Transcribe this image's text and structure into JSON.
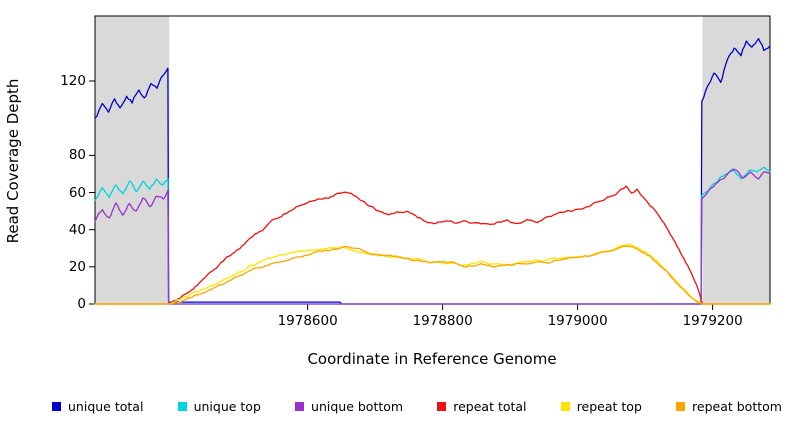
{
  "chart_data": {
    "type": "line",
    "title": "",
    "xlabel": "Coordinate in Reference Genome",
    "ylabel": "Read Coverage Depth",
    "xlim": [
      1978285,
      1979285
    ],
    "ylim": [
      0,
      155
    ],
    "xticks": [
      1978600,
      1978800,
      1979000,
      1979200
    ],
    "yticks": [
      0,
      20,
      40,
      60,
      80,
      120
    ],
    "grid": false,
    "legend_position": "bottom",
    "noise_seed": 7,
    "shaded_regions": [
      {
        "name": "left-flank",
        "x0": 1978285,
        "x1": 1978395,
        "color": "#d9d9d9"
      },
      {
        "name": "right-flank",
        "x0": 1979185,
        "x1": 1979285,
        "color": "#d9d9d9"
      }
    ],
    "series": [
      {
        "name": "unique total",
        "color": "#0000cd",
        "noise": 2.4,
        "points": [
          [
            1978285,
            101
          ],
          [
            1978296,
            108
          ],
          [
            1978305,
            104
          ],
          [
            1978314,
            111
          ],
          [
            1978322,
            106
          ],
          [
            1978332,
            113
          ],
          [
            1978340,
            109
          ],
          [
            1978350,
            117
          ],
          [
            1978358,
            112
          ],
          [
            1978368,
            119
          ],
          [
            1978377,
            115
          ],
          [
            1978386,
            122
          ],
          [
            1978393,
            127
          ],
          [
            1978394,
            1
          ],
          [
            1978648,
            1
          ],
          [
            1978650,
            0
          ],
          [
            1979183,
            0
          ],
          [
            1979184,
            110
          ],
          [
            1979192,
            118
          ],
          [
            1979202,
            124
          ],
          [
            1979212,
            120
          ],
          [
            1979222,
            133
          ],
          [
            1979232,
            139
          ],
          [
            1979242,
            133
          ],
          [
            1979250,
            141
          ],
          [
            1979258,
            136
          ],
          [
            1979268,
            139
          ],
          [
            1979276,
            134
          ],
          [
            1979285,
            137
          ]
        ]
      },
      {
        "name": "unique top",
        "color": "#00d5dd",
        "noise": 2.0,
        "points": [
          [
            1978285,
            56
          ],
          [
            1978296,
            62
          ],
          [
            1978306,
            58
          ],
          [
            1978316,
            64
          ],
          [
            1978326,
            60
          ],
          [
            1978336,
            66
          ],
          [
            1978346,
            61
          ],
          [
            1978356,
            66
          ],
          [
            1978366,
            62
          ],
          [
            1978376,
            67
          ],
          [
            1978386,
            64
          ],
          [
            1978393,
            67
          ],
          [
            1978394,
            0
          ],
          [
            1979183,
            0
          ],
          [
            1979184,
            59
          ],
          [
            1979194,
            63
          ],
          [
            1979206,
            67
          ],
          [
            1979218,
            70
          ],
          [
            1979230,
            73
          ],
          [
            1979242,
            69
          ],
          [
            1979254,
            72
          ],
          [
            1979266,
            70
          ],
          [
            1979276,
            73
          ],
          [
            1979285,
            71
          ]
        ]
      },
      {
        "name": "unique bottom",
        "color": "#9933cc",
        "noise": 2.0,
        "points": [
          [
            1978285,
            45
          ],
          [
            1978296,
            51
          ],
          [
            1978306,
            47
          ],
          [
            1978316,
            54
          ],
          [
            1978326,
            49
          ],
          [
            1978336,
            55
          ],
          [
            1978346,
            51
          ],
          [
            1978356,
            57
          ],
          [
            1978366,
            53
          ],
          [
            1978376,
            58
          ],
          [
            1978386,
            55
          ],
          [
            1978393,
            60
          ],
          [
            1978394,
            0
          ],
          [
            1979183,
            0
          ],
          [
            1979184,
            56
          ],
          [
            1979196,
            61
          ],
          [
            1979208,
            64
          ],
          [
            1979220,
            67
          ],
          [
            1979232,
            70
          ],
          [
            1979244,
            66
          ],
          [
            1979256,
            69
          ],
          [
            1979268,
            66
          ],
          [
            1979278,
            70
          ],
          [
            1979285,
            68
          ]
        ]
      },
      {
        "name": "repeat total",
        "color": "#ee1111",
        "noise": 1.4,
        "points": [
          [
            1978285,
            0
          ],
          [
            1978394,
            0
          ],
          [
            1978405,
            2
          ],
          [
            1978425,
            7
          ],
          [
            1978450,
            15
          ],
          [
            1978475,
            23
          ],
          [
            1978500,
            31
          ],
          [
            1978525,
            38
          ],
          [
            1978550,
            45
          ],
          [
            1978575,
            51
          ],
          [
            1978600,
            55
          ],
          [
            1978620,
            58
          ],
          [
            1978640,
            60
          ],
          [
            1978652,
            61
          ],
          [
            1978662,
            59
          ],
          [
            1978675,
            57
          ],
          [
            1978690,
            53
          ],
          [
            1978705,
            50
          ],
          [
            1978720,
            48
          ],
          [
            1978735,
            49
          ],
          [
            1978748,
            51
          ],
          [
            1978760,
            48
          ],
          [
            1978775,
            45
          ],
          [
            1978790,
            44
          ],
          [
            1978805,
            45
          ],
          [
            1978820,
            43
          ],
          [
            1978835,
            44
          ],
          [
            1978850,
            43
          ],
          [
            1978865,
            42
          ],
          [
            1978880,
            44
          ],
          [
            1978895,
            45
          ],
          [
            1978910,
            43
          ],
          [
            1978925,
            45
          ],
          [
            1978940,
            44
          ],
          [
            1978955,
            46
          ],
          [
            1978970,
            47
          ],
          [
            1978985,
            49
          ],
          [
            1979000,
            50
          ],
          [
            1979015,
            52
          ],
          [
            1979030,
            54
          ],
          [
            1979042,
            56
          ],
          [
            1979055,
            59
          ],
          [
            1979065,
            62
          ],
          [
            1979072,
            63
          ],
          [
            1979080,
            60
          ],
          [
            1979088,
            62
          ],
          [
            1979096,
            58
          ],
          [
            1979105,
            55
          ],
          [
            1979115,
            51
          ],
          [
            1979125,
            46
          ],
          [
            1979135,
            41
          ],
          [
            1979145,
            34
          ],
          [
            1979155,
            27
          ],
          [
            1979163,
            21
          ],
          [
            1979171,
            14
          ],
          [
            1979178,
            8
          ],
          [
            1979183,
            2
          ],
          [
            1979185,
            0
          ],
          [
            1979285,
            0
          ]
        ]
      },
      {
        "name": "repeat top",
        "color": "#ffe400",
        "noise": 1.1,
        "points": [
          [
            1978285,
            0
          ],
          [
            1978394,
            0
          ],
          [
            1978410,
            2
          ],
          [
            1978435,
            6
          ],
          [
            1978460,
            10
          ],
          [
            1978485,
            15
          ],
          [
            1978510,
            19
          ],
          [
            1978535,
            23
          ],
          [
            1978560,
            26
          ],
          [
            1978585,
            28
          ],
          [
            1978610,
            29
          ],
          [
            1978635,
            31
          ],
          [
            1978655,
            31
          ],
          [
            1978675,
            29
          ],
          [
            1978695,
            27
          ],
          [
            1978715,
            26
          ],
          [
            1978735,
            25
          ],
          [
            1978755,
            24
          ],
          [
            1978775,
            23
          ],
          [
            1978795,
            22
          ],
          [
            1978815,
            22
          ],
          [
            1978835,
            21
          ],
          [
            1978855,
            22
          ],
          [
            1978875,
            21
          ],
          [
            1978895,
            22
          ],
          [
            1978915,
            23
          ],
          [
            1978935,
            23
          ],
          [
            1978955,
            24
          ],
          [
            1978975,
            25
          ],
          [
            1978995,
            26
          ],
          [
            1979015,
            27
          ],
          [
            1979035,
            29
          ],
          [
            1979052,
            30
          ],
          [
            1979066,
            32
          ],
          [
            1979076,
            33
          ],
          [
            1979086,
            31
          ],
          [
            1979096,
            29
          ],
          [
            1979108,
            26
          ],
          [
            1979120,
            22
          ],
          [
            1979132,
            18
          ],
          [
            1979144,
            13
          ],
          [
            1979156,
            9
          ],
          [
            1979168,
            5
          ],
          [
            1979178,
            2
          ],
          [
            1979184,
            0
          ],
          [
            1979285,
            0
          ]
        ]
      },
      {
        "name": "repeat bottom",
        "color": "#ffa500",
        "noise": 1.1,
        "points": [
          [
            1978285,
            0
          ],
          [
            1978394,
            0
          ],
          [
            1978412,
            1
          ],
          [
            1978437,
            5
          ],
          [
            1978462,
            9
          ],
          [
            1978487,
            14
          ],
          [
            1978512,
            18
          ],
          [
            1978537,
            21
          ],
          [
            1978562,
            24
          ],
          [
            1978587,
            26
          ],
          [
            1978612,
            28
          ],
          [
            1978637,
            29
          ],
          [
            1978657,
            30
          ],
          [
            1978677,
            28
          ],
          [
            1978697,
            26
          ],
          [
            1978717,
            25
          ],
          [
            1978737,
            24
          ],
          [
            1978757,
            23
          ],
          [
            1978777,
            22
          ],
          [
            1978797,
            21
          ],
          [
            1978817,
            21
          ],
          [
            1978837,
            20
          ],
          [
            1978857,
            21
          ],
          [
            1978877,
            20
          ],
          [
            1978897,
            21
          ],
          [
            1978917,
            22
          ],
          [
            1978937,
            22
          ],
          [
            1978957,
            23
          ],
          [
            1978977,
            24
          ],
          [
            1978997,
            25
          ],
          [
            1979017,
            26
          ],
          [
            1979037,
            28
          ],
          [
            1979054,
            29
          ],
          [
            1979068,
            31
          ],
          [
            1979078,
            31
          ],
          [
            1979088,
            30
          ],
          [
            1979098,
            28
          ],
          [
            1979110,
            25
          ],
          [
            1979122,
            21
          ],
          [
            1979134,
            17
          ],
          [
            1979146,
            12
          ],
          [
            1979158,
            8
          ],
          [
            1979170,
            4
          ],
          [
            1979180,
            1
          ],
          [
            1979184,
            0
          ],
          [
            1979285,
            0
          ]
        ]
      }
    ]
  }
}
